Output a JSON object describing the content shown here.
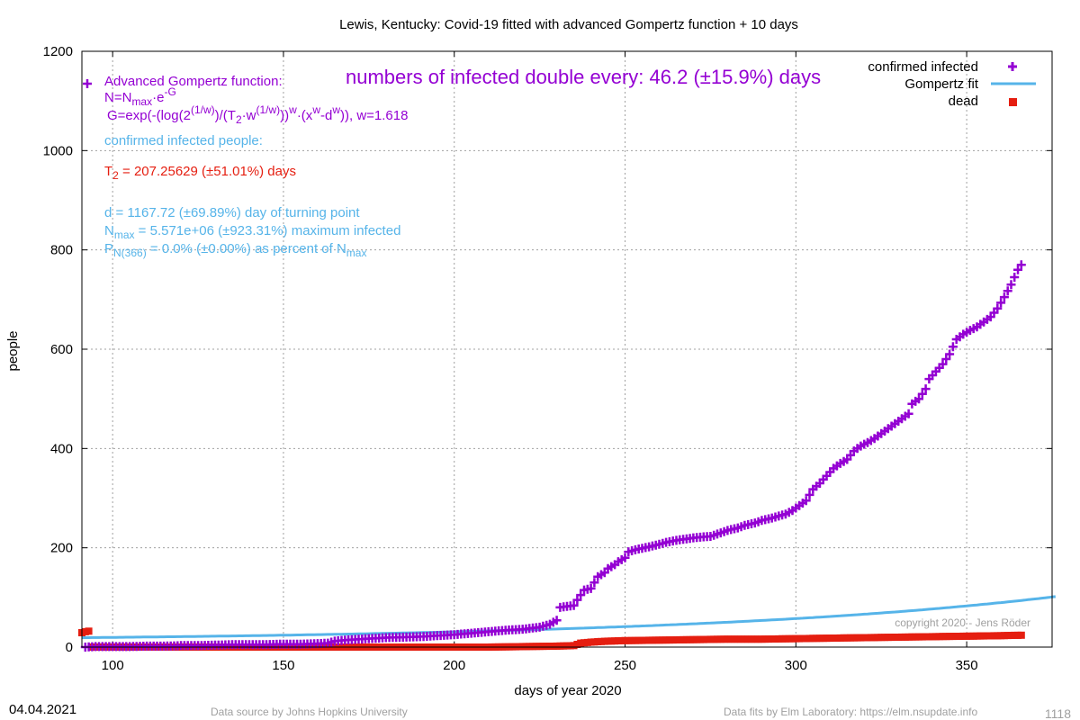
{
  "chart_data": {
    "type": "scatter",
    "title": "Lewis,  Kentucky: Covid-19 fitted with advanced Gompertz function + 10 days",
    "xlabel": "days of year 2020",
    "ylabel": "people",
    "xlim": [
      91,
      375
    ],
    "ylim": [
      0,
      1200
    ],
    "x_ticks": [
      100,
      150,
      200,
      250,
      300,
      350
    ],
    "y_ticks": [
      0,
      200,
      400,
      600,
      800,
      1000,
      1200
    ],
    "grid": true,
    "legend_position": "top-right",
    "legend": [
      {
        "label": "confirmed infected",
        "color": "#9400d3",
        "marker": "plus"
      },
      {
        "label": "Gompertz fit",
        "color": "#56b4e9",
        "marker": "line"
      },
      {
        "label": "dead",
        "color": "#e51e10",
        "marker": "square"
      }
    ],
    "series": [
      {
        "name": "confirmed infected",
        "color": "#9400d3",
        "points": [
          [
            92,
            0
          ],
          [
            95,
            1
          ],
          [
            100,
            1
          ],
          [
            105,
            1
          ],
          [
            110,
            2
          ],
          [
            115,
            2
          ],
          [
            120,
            3
          ],
          [
            125,
            3
          ],
          [
            130,
            4
          ],
          [
            135,
            5
          ],
          [
            140,
            5
          ],
          [
            145,
            5
          ],
          [
            150,
            6
          ],
          [
            155,
            6
          ],
          [
            160,
            7
          ],
          [
            163,
            8
          ],
          [
            165,
            12
          ],
          [
            168,
            14
          ],
          [
            170,
            15
          ],
          [
            175,
            17
          ],
          [
            180,
            19
          ],
          [
            185,
            20
          ],
          [
            190,
            21
          ],
          [
            195,
            23
          ],
          [
            200,
            25
          ],
          [
            205,
            28
          ],
          [
            210,
            31
          ],
          [
            215,
            34
          ],
          [
            220,
            36
          ],
          [
            225,
            40
          ],
          [
            228,
            46
          ],
          [
            230,
            54
          ],
          [
            231,
            80
          ],
          [
            233,
            82
          ],
          [
            235,
            84
          ],
          [
            236,
            95
          ],
          [
            238,
            115
          ],
          [
            240,
            118
          ],
          [
            241,
            130
          ],
          [
            242,
            142
          ],
          [
            244,
            150
          ],
          [
            245,
            158
          ],
          [
            247,
            166
          ],
          [
            248,
            172
          ],
          [
            250,
            180
          ],
          [
            251,
            192
          ],
          [
            253,
            196
          ],
          [
            255,
            199
          ],
          [
            257,
            202
          ],
          [
            260,
            207
          ],
          [
            262,
            211
          ],
          [
            265,
            215
          ],
          [
            268,
            218
          ],
          [
            270,
            220
          ],
          [
            273,
            222
          ],
          [
            275,
            223
          ],
          [
            278,
            230
          ],
          [
            280,
            235
          ],
          [
            283,
            240
          ],
          [
            285,
            245
          ],
          [
            288,
            250
          ],
          [
            290,
            255
          ],
          [
            293,
            260
          ],
          [
            295,
            264
          ],
          [
            297,
            268
          ],
          [
            299,
            275
          ],
          [
            301,
            285
          ],
          [
            303,
            295
          ],
          [
            305,
            318
          ],
          [
            307,
            330
          ],
          [
            309,
            345
          ],
          [
            311,
            360
          ],
          [
            313,
            370
          ],
          [
            315,
            378
          ],
          [
            317,
            395
          ],
          [
            319,
            405
          ],
          [
            321,
            412
          ],
          [
            323,
            420
          ],
          [
            325,
            430
          ],
          [
            327,
            440
          ],
          [
            329,
            450
          ],
          [
            331,
            460
          ],
          [
            333,
            470
          ],
          [
            334,
            490
          ],
          [
            336,
            500
          ],
          [
            338,
            520
          ],
          [
            339,
            540
          ],
          [
            341,
            555
          ],
          [
            343,
            570
          ],
          [
            345,
            590
          ],
          [
            347,
            620
          ],
          [
            349,
            630
          ],
          [
            351,
            638
          ],
          [
            353,
            645
          ],
          [
            355,
            655
          ],
          [
            357,
            665
          ],
          [
            359,
            682
          ],
          [
            361,
            705
          ],
          [
            363,
            730
          ],
          [
            365,
            760
          ],
          [
            366,
            770
          ]
        ]
      },
      {
        "name": "Gompertz fit",
        "color": "#56b4e9",
        "fit": {
          "n0": 18.97,
          "t2": 207.25629,
          "w": 1.618,
          "x0": 91,
          "x_end": 376
        }
      },
      {
        "name": "dead",
        "color": "#e51e10",
        "points": [
          [
            91,
            29
          ],
          [
            92,
            31
          ],
          [
            93,
            32
          ],
          [
            95,
            0
          ],
          [
            100,
            0
          ],
          [
            110,
            0
          ],
          [
            120,
            0
          ],
          [
            130,
            0
          ],
          [
            140,
            0
          ],
          [
            150,
            0
          ],
          [
            160,
            0
          ],
          [
            170,
            0
          ],
          [
            180,
            0
          ],
          [
            190,
            0
          ],
          [
            200,
            0
          ],
          [
            210,
            0
          ],
          [
            220,
            1
          ],
          [
            230,
            2
          ],
          [
            235,
            3
          ],
          [
            237,
            8
          ],
          [
            240,
            10
          ],
          [
            245,
            12
          ],
          [
            250,
            13
          ],
          [
            260,
            14
          ],
          [
            270,
            15
          ],
          [
            280,
            16
          ],
          [
            290,
            16
          ],
          [
            300,
            17
          ],
          [
            310,
            18
          ],
          [
            320,
            19
          ],
          [
            330,
            20
          ],
          [
            340,
            21
          ],
          [
            350,
            22
          ],
          [
            360,
            23
          ],
          [
            366,
            24
          ]
        ]
      }
    ],
    "annotations": {
      "formula_title": "Advanced Gompertz function:",
      "formula_n": "N=N",
      "formula_n_sub": "max",
      "formula_n_tail": "·e",
      "formula_n_sup": "-G",
      "formula_g_a": "G=exp(-(log(2",
      "formula_g_sup1": "(1/w)",
      "formula_g_b": ")/(T",
      "formula_g_sub": "2",
      "formula_g_c": "·w",
      "formula_g_sup2": "(1/w)",
      "formula_g_d": "))",
      "formula_g_sup3": "w",
      "formula_g_e": "·(x",
      "formula_g_sup4": "w",
      "formula_g_f": "-d",
      "formula_g_sup5": "w",
      "formula_g_g": ")), w=1.618",
      "doubling": "numbers of infected double every: 46.2 (±15.9%) days",
      "confirmed_header": "confirmed infected people:",
      "t2_a": "T",
      "t2_sub": "2",
      "t2_b": " = 207.25629 (±51.01%) days",
      "d_line": "d = 1167.72 (±69.89%) day of turning point",
      "nmax_a": "N",
      "nmax_sub": "max",
      "nmax_b": " = 5.571e+06 (±923.31%) maximum infected",
      "p_a": "P",
      "p_sub": "N(366)",
      "p_b": " = 0.0% (±0.00%) as percent of N",
      "p_sub2": "max",
      "copyright": "copyright 2020 - Jens Röder"
    }
  },
  "footer": {
    "date": "04.04.2021",
    "source": "Data source by Johns Hopkins University",
    "fits": "Data fits by Elm Laboratory: https://elm.nsupdate.info",
    "page_number": "1118"
  }
}
